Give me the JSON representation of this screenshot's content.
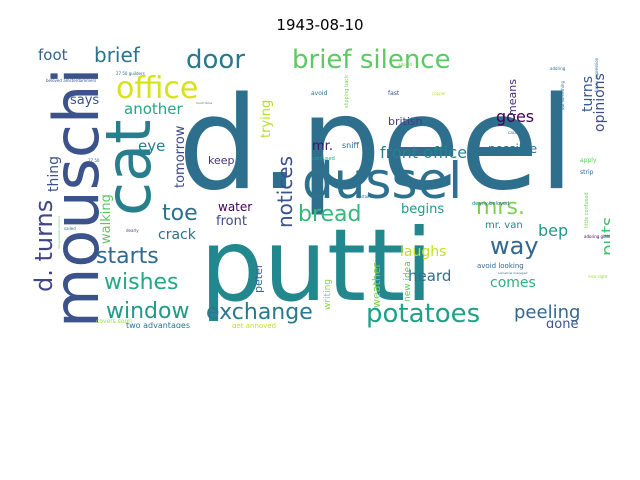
{
  "title": "1943-08-10",
  "words": [
    {
      "text": "d.peel",
      "color": "#2e6f8e"
    },
    {
      "text": "putti",
      "color": "#23888e"
    },
    {
      "text": "mouschi",
      "color": "#3b528b"
    },
    {
      "text": "cat",
      "color": "#277f8e"
    },
    {
      "text": "dussel",
      "color": "#2c728e"
    },
    {
      "text": "brief silence",
      "color": "#5ec962"
    },
    {
      "text": "office",
      "color": "#d8e219"
    },
    {
      "text": "door",
      "color": "#2a788e"
    },
    {
      "text": "d. turns",
      "color": "#414487"
    },
    {
      "text": "exchange",
      "color": "#2a788e"
    },
    {
      "text": "potatoes",
      "color": "#1fa187"
    },
    {
      "text": "window",
      "color": "#1f9a8a"
    },
    {
      "text": "starts",
      "color": "#31688e"
    },
    {
      "text": "wishes",
      "color": "#22a884"
    },
    {
      "text": "way",
      "color": "#31688e"
    },
    {
      "text": "bread",
      "color": "#35b779"
    },
    {
      "text": "mrs.",
      "color": "#7ad151"
    },
    {
      "text": "toe",
      "color": "#2c728e"
    },
    {
      "text": "notices",
      "color": "#3b528b"
    },
    {
      "text": "peeling",
      "color": "#31688e"
    },
    {
      "text": "front office",
      "color": "#26828e"
    },
    {
      "text": "brief",
      "color": "#2c728e"
    },
    {
      "text": "puts",
      "color": "#48c16e"
    },
    {
      "text": "bep",
      "color": "#1f9a8a"
    },
    {
      "text": "goes",
      "color": "#440154"
    },
    {
      "text": "opinions",
      "color": "#3e4a89"
    },
    {
      "text": "turns",
      "color": "#38598c"
    },
    {
      "text": "foot",
      "color": "#33628d"
    },
    {
      "text": "another",
      "color": "#22a884"
    },
    {
      "text": "says",
      "color": "#3b528b"
    },
    {
      "text": "thing",
      "color": "#3b528b"
    },
    {
      "text": "tomorrow",
      "color": "#3e4a89"
    },
    {
      "text": "eye",
      "color": "#287c8e"
    },
    {
      "text": "trying",
      "color": "#b5de2b"
    },
    {
      "text": "crack",
      "color": "#2c728e"
    },
    {
      "text": "laughs",
      "color": "#c2df23"
    },
    {
      "text": "heard",
      "color": "#2e6f8e"
    },
    {
      "text": "comes",
      "color": "#2ab07f"
    },
    {
      "text": "begins",
      "color": "#1f9a8a"
    },
    {
      "text": "gone",
      "color": "#3b528b"
    },
    {
      "text": "water",
      "color": "#440154"
    },
    {
      "text": "front",
      "color": "#3e4a89"
    },
    {
      "text": "walking",
      "color": "#5ec962"
    },
    {
      "text": "peter",
      "color": "#31688e"
    },
    {
      "text": "weather",
      "color": "#7ad151"
    },
    {
      "text": "british",
      "color": "#433e85"
    },
    {
      "text": "possible",
      "color": "#2c728e"
    },
    {
      "text": "means",
      "color": "#472d7b"
    },
    {
      "text": "keep",
      "color": "#46327e"
    },
    {
      "text": "writing",
      "color": "#86d549"
    },
    {
      "text": "new idea",
      "color": "#5ec962"
    },
    {
      "text": "mr.",
      "color": "#471365"
    },
    {
      "text": "mr. van",
      "color": "#26828e"
    },
    {
      "text": "avoid looking",
      "color": "#31688e"
    },
    {
      "text": "sniff",
      "color": "#31688e"
    },
    {
      "text": "confused",
      "color": "#22a884"
    },
    {
      "text": "fast",
      "color": "#3b528b"
    },
    {
      "text": "avoid",
      "color": "#2c728e"
    },
    {
      "text": "slipping back",
      "color": "#7ad151"
    },
    {
      "text": "two advantages",
      "color": "#2c728e"
    },
    {
      "text": "get annoyed",
      "color": "#c2df23"
    },
    {
      "text": "continuous chatter",
      "color": "#31688e"
    },
    {
      "text": "mother calls",
      "color": "#7ad151"
    },
    {
      "text": "covers soon",
      "color": "#a0da39"
    },
    {
      "text": "dearly beloved",
      "color": "#2c728e"
    },
    {
      "text": "adoring glances",
      "color": "#440154"
    },
    {
      "text": "little confused",
      "color": "#7ad151"
    },
    {
      "text": "funny expression",
      "color": "#2c728e"
    },
    {
      "text": "apply",
      "color": "#5ec962"
    },
    {
      "text": "strip",
      "color": "#31688e"
    },
    {
      "text": "out something",
      "color": "#31688e"
    },
    {
      "text": "copper",
      "color": "#c2df23"
    },
    {
      "text": "adored",
      "color": "#7ad151"
    },
    {
      "text": "adoring",
      "color": "#31688e"
    },
    {
      "text": "27.50 guilders",
      "color": "#31688e"
    },
    {
      "text": "beloved amsterdammers",
      "color": "#3b528b"
    },
    {
      "text": "dearly",
      "color": "#433e85"
    },
    {
      "text": "much time",
      "color": "#31688e"
    },
    {
      "text": "upstairs",
      "color": "#31688e"
    },
    {
      "text": "sailed",
      "color": "#31688e"
    },
    {
      "text": "cast",
      "color": "#31688e"
    },
    {
      "text": "somehow managed",
      "color": "#2c728e"
    },
    {
      "text": "disagreeable moment",
      "color": "#5ec962"
    },
    {
      "text": "27.50",
      "color": "#31688e"
    },
    {
      "text": "nice sight",
      "color": "#a0da39"
    }
  ]
}
